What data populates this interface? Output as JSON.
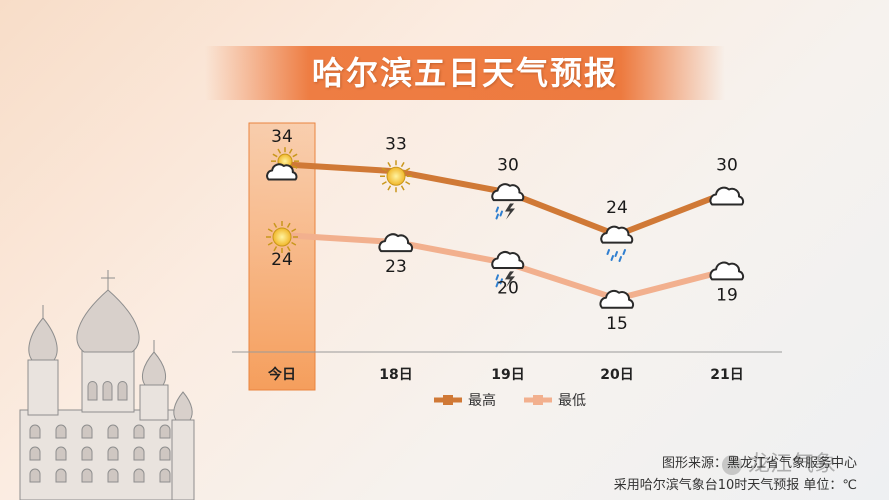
{
  "title": "哈尔滨五日天气预报",
  "colors": {
    "high": "#d07936",
    "low": "#f2b08e",
    "highlight": "#f59a55",
    "banner": "#ee7d43"
  },
  "chart_data": {
    "type": "line",
    "categories": [
      "今日",
      "18日",
      "19日",
      "20日",
      "21日"
    ],
    "series": [
      {
        "name": "最高",
        "values": [
          34,
          33,
          30,
          24,
          30
        ]
      },
      {
        "name": "最低",
        "values": [
          24,
          23,
          20,
          15,
          19
        ]
      }
    ],
    "ylim": [
      12,
      36
    ],
    "highlight_category": "今日",
    "legend_position": "bottom-center",
    "weather_icons": {
      "high": [
        "cloudy-sunny-icon",
        "sunny-icon",
        "thunderstorm-icon",
        "rain-icon",
        "cloudy-icon"
      ],
      "low": [
        "sunny-icon",
        "cloudy-icon",
        "thunderstorm-icon",
        "cloudy-icon",
        "cloudy-icon"
      ]
    }
  },
  "source": {
    "line1": "图形来源：黑龙江省气象服务中心",
    "line2": "采用哈尔滨气象台10时天气预报 单位：℃"
  },
  "watermark": "龙江气象"
}
